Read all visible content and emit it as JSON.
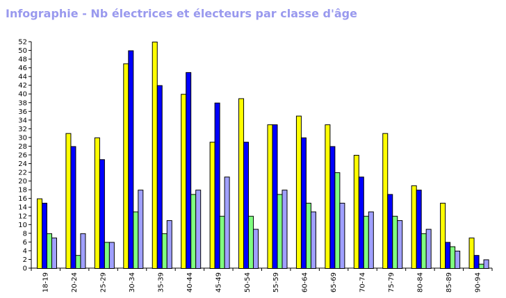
{
  "chart_data": {
    "type": "bar",
    "title": "Infographie - Nb électrices et électeurs par classe d'âge",
    "xlabel": "",
    "ylabel": "",
    "ylim": [
      0,
      52
    ],
    "ytick_step": 2,
    "grid": false,
    "legend": "none",
    "categories": [
      "18-19",
      "20-24",
      "25-29",
      "30-34",
      "35-39",
      "40-44",
      "45-49",
      "50-54",
      "55-59",
      "60-64",
      "65-69",
      "70-74",
      "75-79",
      "80-84",
      "85-89",
      "90-94"
    ],
    "series": [
      {
        "color": "#ffff00",
        "values": [
          16,
          31,
          30,
          47,
          52,
          40,
          29,
          39,
          33,
          35,
          33,
          26,
          31,
          19,
          15,
          7
        ]
      },
      {
        "color": "#0000ff",
        "values": [
          15,
          28,
          25,
          50,
          42,
          45,
          38,
          29,
          33,
          30,
          28,
          21,
          17,
          18,
          6,
          3
        ]
      },
      {
        "color": "#80ff80",
        "values": [
          8,
          3,
          6,
          13,
          8,
          17,
          12,
          12,
          17,
          15,
          22,
          12,
          12,
          8,
          5,
          1
        ]
      },
      {
        "color": "#a0a0ff",
        "values": [
          7,
          8,
          6,
          18,
          11,
          18,
          21,
          9,
          18,
          13,
          15,
          13,
          11,
          9,
          4,
          2
        ]
      }
    ]
  }
}
